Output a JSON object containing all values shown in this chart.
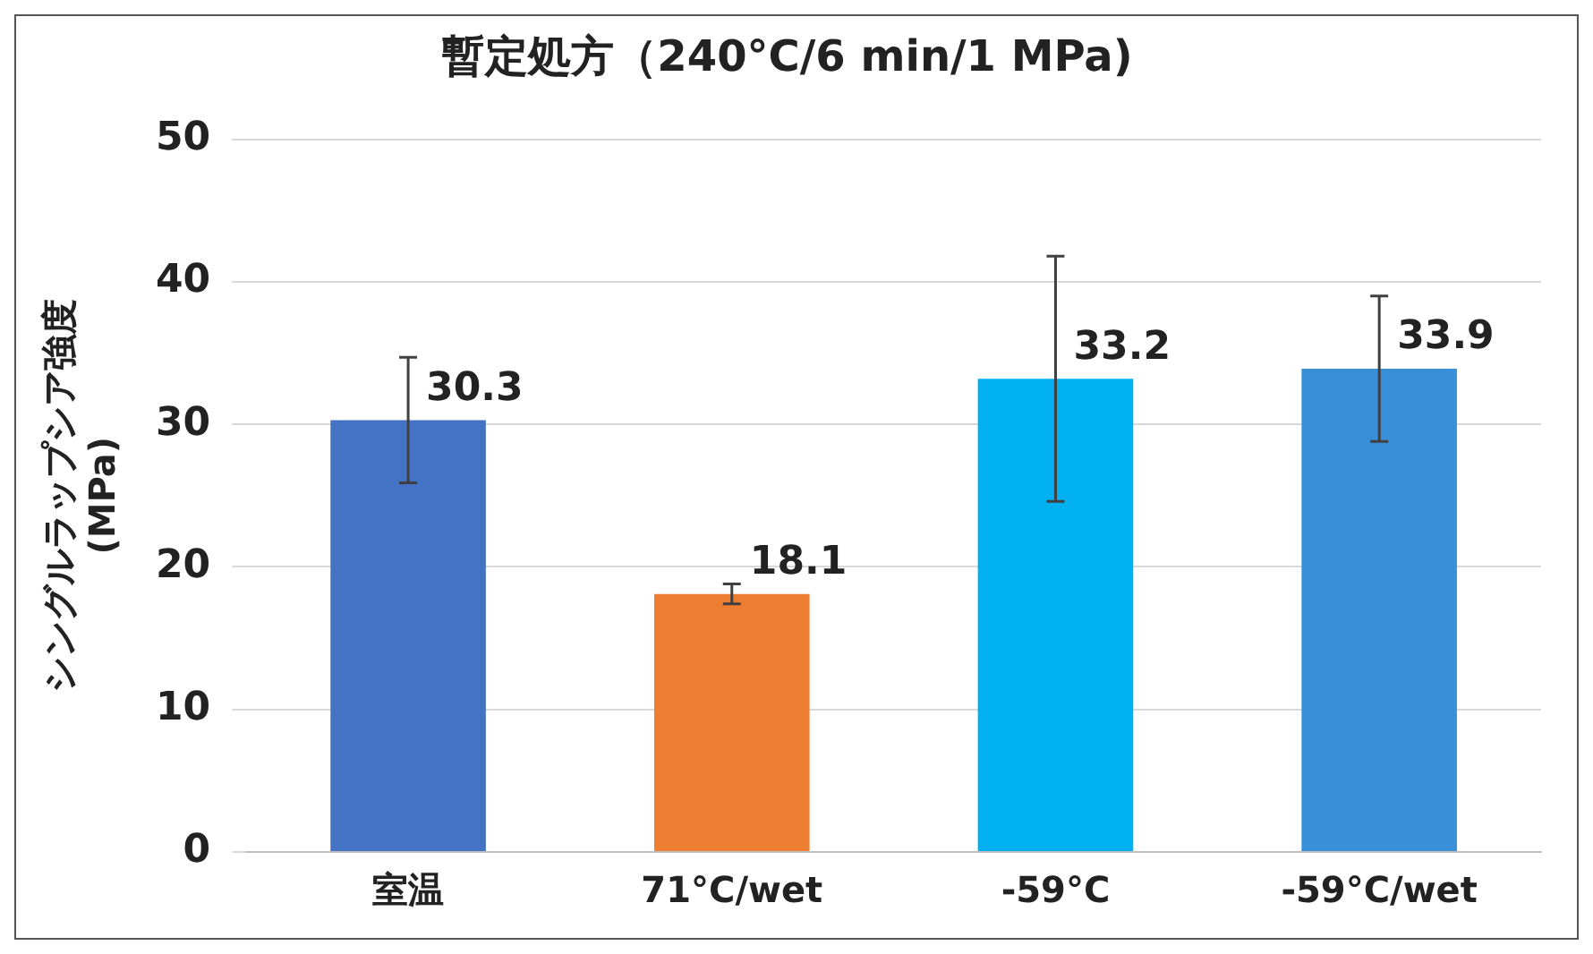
{
  "chart_data": {
    "type": "bar",
    "title": "暫定処方（240°C/6 min/1 MPa)",
    "ylabel": "シングルラップシア強度\n(MPa)",
    "categories": [
      "室温",
      "71°C/wet",
      "-59°C",
      "-59°C/wet"
    ],
    "values": [
      30.3,
      18.1,
      33.2,
      33.9
    ],
    "colors": [
      "#4472c4",
      "#ed7d31",
      "#00b0f0",
      "#3a8fd9"
    ],
    "errors": [
      4.4,
      0.7,
      8.6,
      5.1
    ],
    "ylim": [
      0,
      50
    ],
    "yticks": [
      0,
      10,
      20,
      30,
      40,
      50
    ],
    "grid": "y",
    "data_labels": true,
    "legend": false
  }
}
